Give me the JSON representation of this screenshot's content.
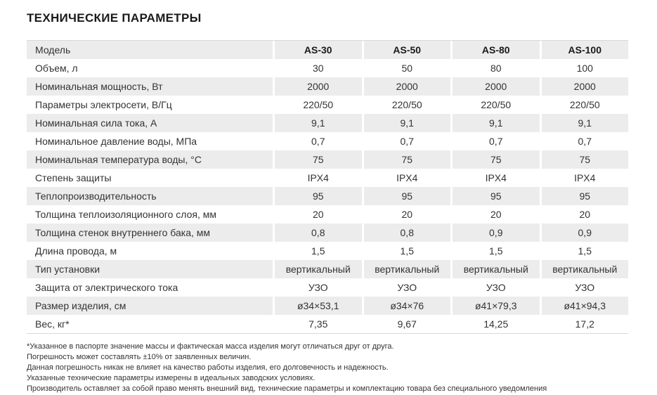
{
  "page": {
    "title": "ТЕХНИЧЕСКИЕ ПАРАМЕТРЫ"
  },
  "table": {
    "header": {
      "label": "Модель",
      "columns": [
        "AS-30",
        "AS-50",
        "AS-80",
        "AS-100"
      ]
    },
    "rows": [
      {
        "label": "Объем, л",
        "values": [
          "30",
          "50",
          "80",
          "100"
        ]
      },
      {
        "label": "Номинальная мощность, Вт",
        "values": [
          "2000",
          "2000",
          "2000",
          "2000"
        ]
      },
      {
        "label": "Параметры электросети, В/Гц",
        "values": [
          "220/50",
          "220/50",
          "220/50",
          "220/50"
        ]
      },
      {
        "label": "Номинальная сила тока, А",
        "values": [
          "9,1",
          "9,1",
          "9,1",
          "9,1"
        ]
      },
      {
        "label": "Номинальное давление воды, МПа",
        "values": [
          "0,7",
          "0,7",
          "0,7",
          "0,7"
        ]
      },
      {
        "label": "Номинальная температура воды, °С",
        "values": [
          "75",
          "75",
          "75",
          "75"
        ]
      },
      {
        "label": "Степень защиты",
        "values": [
          "IPX4",
          "IPX4",
          "IPX4",
          "IPX4"
        ]
      },
      {
        "label": "Теплопроизводительность",
        "values": [
          "95",
          "95",
          "95",
          "95"
        ]
      },
      {
        "label": "Толщина теплоизоляционного слоя, мм",
        "values": [
          "20",
          "20",
          "20",
          "20"
        ]
      },
      {
        "label": "Толщина стенок внутреннего бака, мм",
        "values": [
          "0,8",
          "0,8",
          "0,9",
          "0,9"
        ]
      },
      {
        "label": "Длина  провода, м",
        "values": [
          "1,5",
          "1,5",
          "1,5",
          "1,5"
        ]
      },
      {
        "label": "Тип установки",
        "values": [
          "вертикальный",
          "вертикальный",
          "вертикальный",
          "вертикальный"
        ]
      },
      {
        "label": "Защита от электрического тока",
        "values": [
          "УЗО",
          "УЗО",
          "УЗО",
          "УЗО"
        ]
      },
      {
        "label": "Размер изделия, см",
        "values": [
          "ø34×53,1",
          "ø34×76",
          "ø41×79,3",
          "ø41×94,3"
        ]
      },
      {
        "label": "Вес, кг*",
        "values": [
          "7,35",
          "9,67",
          "14,25",
          "17,2"
        ]
      }
    ]
  },
  "footnotes": [
    "*Указанное в паспорте значение массы и фактическая масса изделия могут отличаться друг от друга.",
    "Погрешность может составлять ±10% от заявленных величин.",
    "Данная погрешность никак не влияет на качество работы изделия, его долговечность и надежность.",
    "Указанные технические параметры измерены в идеальных заводских условиях.",
    "Производитель оставляет за собой право менять внешний вид, технические параметры и комплектацию товара без специального уведомления"
  ],
  "colors": {
    "stripe": "#ececec",
    "border": "#d9d9d9",
    "text": "#333333",
    "title": "#1a1a1a",
    "background": "#ffffff"
  }
}
